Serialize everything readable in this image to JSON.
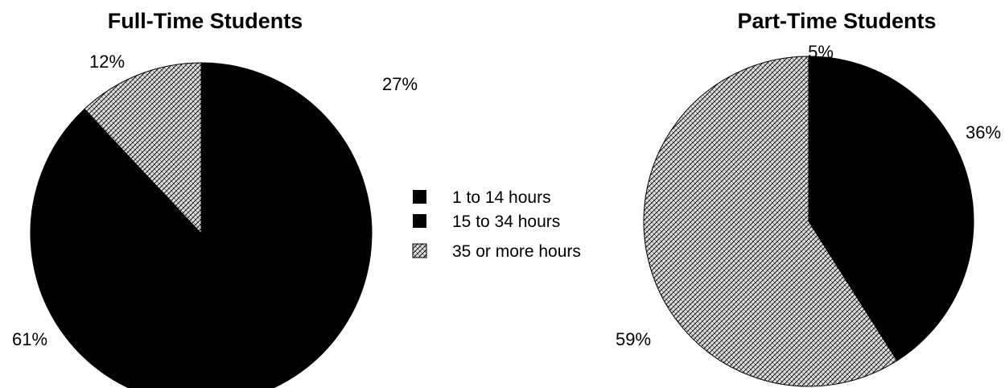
{
  "colors": {
    "solid": "#000000",
    "dotted_fill": "#dcdcdc",
    "dotted_pattern": "#000000",
    "background": "#ffffff"
  },
  "legend": {
    "items": [
      {
        "label": "1 to 14 hours",
        "fill": "solid"
      },
      {
        "label": "15 to 34 hours",
        "fill": "solid"
      },
      {
        "label": "35  or more hours",
        "fill": "dotted"
      }
    ]
  },
  "chart_data": [
    {
      "type": "pie",
      "title": "Full-Time Students",
      "slices": [
        {
          "category": "15 to 34 hours",
          "value": 27,
          "label": "27%",
          "fill": "solid"
        },
        {
          "category": "1 to 14 hours",
          "value": 61,
          "label": "61%",
          "fill": "solid"
        },
        {
          "category": "35  or more hours",
          "value": 12,
          "label": "12%",
          "fill": "dotted"
        }
      ],
      "start_angle_deg": 0,
      "direction": "clockwise"
    },
    {
      "type": "pie",
      "title": "Part-Time Students",
      "slices": [
        {
          "category": "1 to 14 hours",
          "value": 5,
          "label": "5%",
          "fill": "solid"
        },
        {
          "category": "15 to 34 hours",
          "value": 36,
          "label": "36%",
          "fill": "solid"
        },
        {
          "category": "35  or more hours",
          "value": 59,
          "label": "59%",
          "fill": "dotted"
        }
      ],
      "start_angle_deg": 0,
      "direction": "clockwise"
    }
  ]
}
